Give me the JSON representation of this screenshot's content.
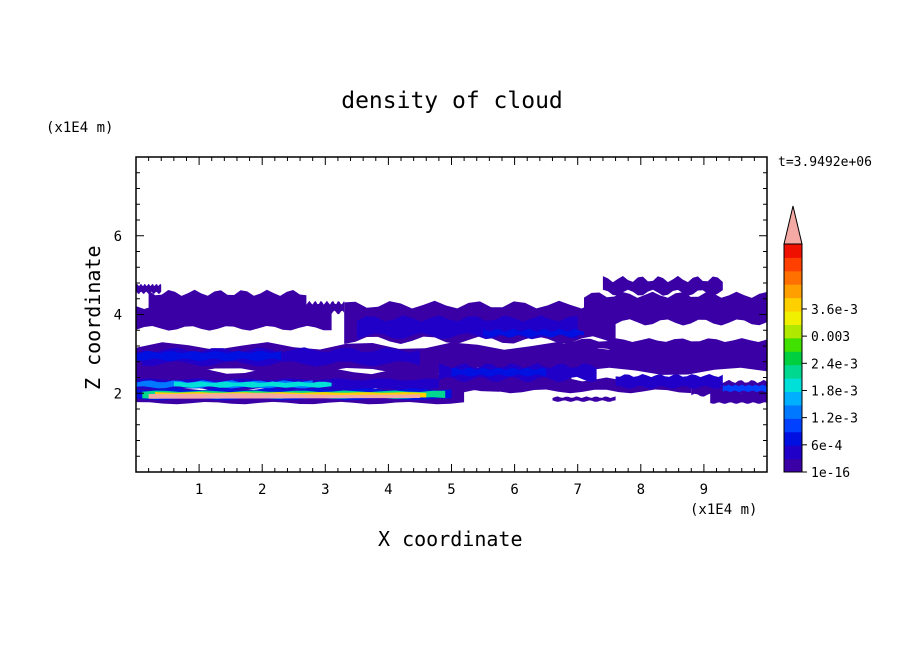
{
  "chart_data": {
    "type": "heatmap",
    "title": "density of cloud",
    "xlabel": "X coordinate",
    "ylabel": "Z coordinate",
    "x_unit": "(x1E4 m)",
    "z_unit": "(x1E4 m)",
    "time_label": "t=3.9492e+06",
    "xlim": [
      0,
      10
    ],
    "ylim": [
      0,
      8
    ],
    "x_ticks": [
      1,
      2,
      3,
      4,
      5,
      6,
      7,
      8,
      9
    ],
    "y_ticks": [
      2,
      4,
      6
    ],
    "colorbar": {
      "tick_labels": [
        "1e-16",
        "6e-4",
        "1.2e-3",
        "1.8e-3",
        "2.4e-3",
        "0.003",
        "3.6e-3"
      ],
      "colors": [
        "#3a00a6",
        "#2000c8",
        "#0010e0",
        "#0040ff",
        "#0078ff",
        "#00b0ff",
        "#00e0d8",
        "#00d890",
        "#00d040",
        "#40e000",
        "#b0e800",
        "#f0f000",
        "#ffd000",
        "#ffa000",
        "#ff7000",
        "#ff4000",
        "#f01000"
      ],
      "overflow_color": "#f4a9a4"
    },
    "regions": [
      {
        "level": 1,
        "x": [
          0.0,
          10.0
        ],
        "z": [
          4.45,
          4.8
        ],
        "note": "left patch"
      },
      {
        "level": 1,
        "x": [
          0.0,
          10.0
        ],
        "z": [
          1.75,
          4.6
        ]
      }
    ]
  }
}
